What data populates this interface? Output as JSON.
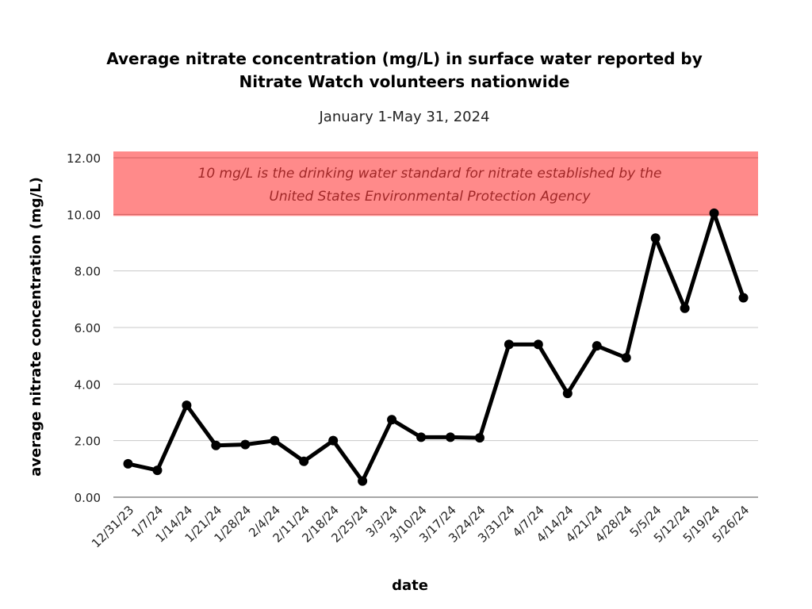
{
  "chart_data": {
    "type": "line",
    "title": [
      "Average nitrate concentration (mg/L) in surface water reported by",
      "Nitrate Watch volunteers nationwide"
    ],
    "subtitle": "January 1-May 31, 2024",
    "xlabel": "date",
    "ylabel": "average nitrate concentration (mg/L)",
    "ylim": [
      0,
      12
    ],
    "yticks": [
      "0.00",
      "2.00",
      "4.00",
      "6.00",
      "8.00",
      "10.00",
      "12.00"
    ],
    "ytick_values": [
      0,
      2,
      4,
      6,
      8,
      10,
      12
    ],
    "grid": true,
    "categories": [
      "12/31/23",
      "1/7/24",
      "1/14/24",
      "1/21/24",
      "1/28/24",
      "2/4/24",
      "2/11/24",
      "2/18/24",
      "2/25/24",
      "3/3/24",
      "3/10/24",
      "3/17/24",
      "3/24/24",
      "3/31/24",
      "4/7/24",
      "4/14/24",
      "4/21/24",
      "4/28/24",
      "5/5/24",
      "5/12/24",
      "5/19/24",
      "5/26/24"
    ],
    "series": [
      {
        "name": "average nitrate concentration",
        "color": "#000000",
        "values": [
          1.18,
          0.95,
          3.25,
          1.83,
          1.86,
          2.0,
          1.27,
          2.0,
          0.57,
          2.74,
          2.12,
          2.12,
          2.1,
          5.4,
          5.4,
          3.67,
          5.35,
          4.93,
          9.16,
          6.68,
          10.04,
          7.05
        ]
      }
    ],
    "annotation_band": {
      "from": 10,
      "to": 12,
      "color": "#ff8a8a",
      "line_color": "#d06060",
      "text": [
        "10 mg/L is the drinking water standard for nitrate established by the",
        "United States Environmental Protection Agency"
      ]
    }
  }
}
